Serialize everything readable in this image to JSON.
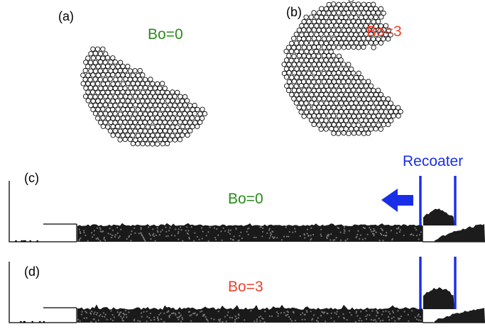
{
  "panels": {
    "a": {
      "letter": "(a)",
      "bo_label": "Bo=0"
    },
    "b": {
      "letter": "(b)",
      "bo_label": "Bo=3"
    },
    "c": {
      "letter": "(c)",
      "bo_label": "Bo=0"
    },
    "d": {
      "letter": "(d)",
      "bo_label": "Bo=3"
    }
  },
  "recoater_label": "Recoater",
  "arrow": {
    "icon": "left-arrow-icon",
    "direction": "left"
  },
  "colors": {
    "bo0": "#2a8a1c",
    "bo3": "#f0402a",
    "recoater": "#1a2ee8",
    "particle": "#000000",
    "background": "#ffffff"
  }
}
